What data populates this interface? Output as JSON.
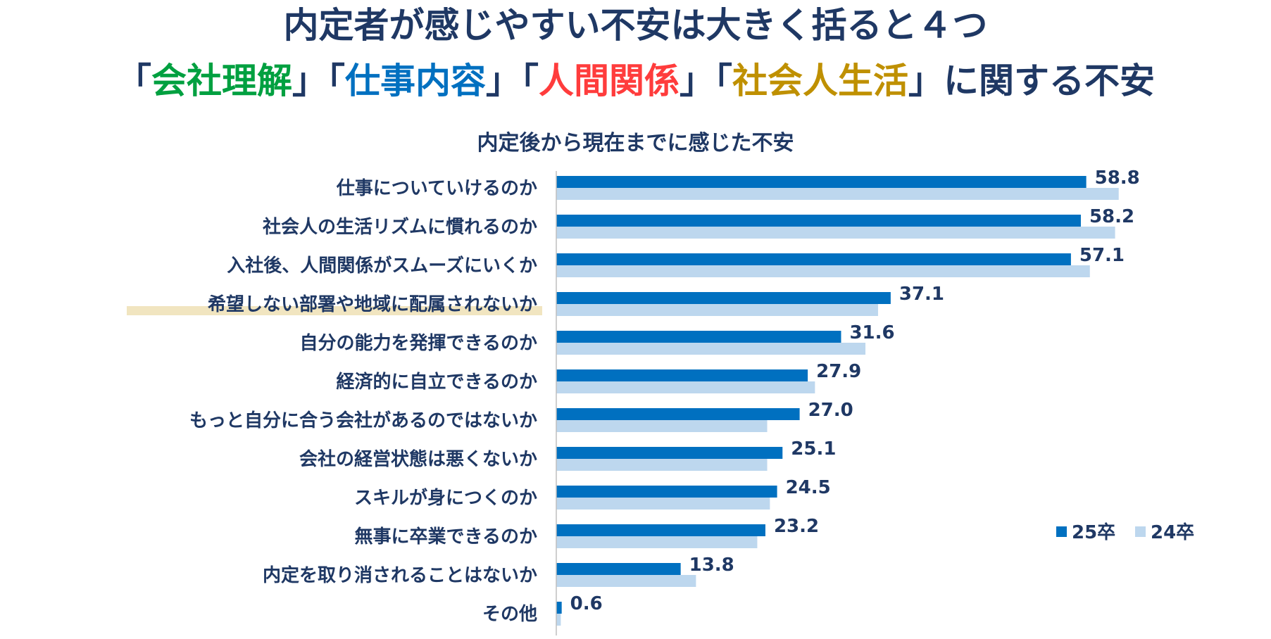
{
  "headline": {
    "line1": "内定者が感じやすい不安は大きく括ると４つ",
    "line2_parts": [
      {
        "text": "「",
        "color": "#1f3864"
      },
      {
        "text": "会社理解",
        "color": "#00a040"
      },
      {
        "text": "」「",
        "color": "#1f3864"
      },
      {
        "text": "仕事内容",
        "color": "#0070c0"
      },
      {
        "text": "」「",
        "color": "#1f3864"
      },
      {
        "text": "人間関係",
        "color": "#ff3c3c"
      },
      {
        "text": "」「",
        "color": "#1f3864"
      },
      {
        "text": "社会人生活",
        "color": "#bf9000"
      },
      {
        "text": "」に関する不安",
        "color": "#1f3864"
      }
    ]
  },
  "chart_data": {
    "type": "bar",
    "orientation": "horizontal",
    "title": "内定後から現在までに感じた不安",
    "categories": [
      "仕事についていけるのか",
      "社会人の生活リズムに慣れるのか",
      "入社後、人間関係がスムーズにいくか",
      "希望しない部署や地域に配属されないか",
      "自分の能力を発揮できるのか",
      "経済的に自立できるのか",
      "もっと自分に合う会社があるのではないか",
      "会社の経営状態は悪くないか",
      "スキルが身につくのか",
      "無事に卒業できるのか",
      "内定を取り消されることはないか",
      "その他"
    ],
    "highlighted_category": "希望しない部署や地域に配属されないか",
    "series": [
      {
        "name": "25卒",
        "color": "#0070c0",
        "values": [
          58.8,
          58.2,
          57.1,
          37.1,
          31.6,
          27.9,
          27.0,
          25.1,
          24.5,
          23.2,
          13.8,
          0.6
        ],
        "labels": [
          "58.8",
          "58.2",
          "57.1",
          "37.1",
          "31.6",
          "27.9",
          "27.0",
          "25.1",
          "24.5",
          "23.2",
          "13.8",
          "0.6"
        ]
      },
      {
        "name": "24卒",
        "color": "#bdd7ee",
        "values": [
          62.4,
          62.0,
          59.2,
          35.7,
          34.3,
          28.7,
          23.4,
          23.4,
          23.7,
          22.3,
          15.5,
          0.5
        ]
      }
    ],
    "xlim": [
      0,
      100
    ],
    "legend": {
      "position": "right",
      "items": [
        "25卒",
        "24卒"
      ]
    }
  }
}
